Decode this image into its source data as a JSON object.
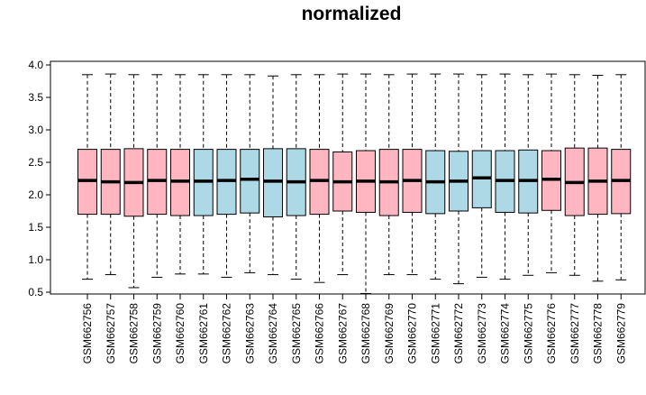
{
  "chart_data": {
    "type": "boxplot",
    "title": "normalized",
    "xlabel": "",
    "ylabel": "",
    "ylim": [
      0.4,
      4.0
    ],
    "yticks": [
      0.5,
      1.0,
      1.5,
      2.0,
      2.5,
      3.0,
      3.5,
      4.0
    ],
    "ytick_labels": [
      "0.5",
      "1.0",
      "1.5",
      "2.0",
      "2.5",
      "3.0",
      "3.5",
      "4.0"
    ],
    "colors": {
      "pink": "#ffb6c1",
      "blue": "#add8e6"
    },
    "categories": [
      "GSM662756",
      "GSM662757",
      "GSM662758",
      "GSM662759",
      "GSM662760",
      "GSM662761",
      "GSM662762",
      "GSM662763",
      "GSM662764",
      "GSM662765",
      "GSM662766",
      "GSM662767",
      "GSM662768",
      "GSM662769",
      "GSM662770",
      "GSM662771",
      "GSM662772",
      "GSM662773",
      "GSM662774",
      "GSM662775",
      "GSM662776",
      "GSM662777",
      "GSM662778",
      "GSM662779"
    ],
    "boxes": [
      {
        "color": "pink",
        "whisker_low": 0.7,
        "q1": 1.7,
        "median": 2.22,
        "q3": 2.7,
        "whisker_high": 3.85
      },
      {
        "color": "pink",
        "whisker_low": 0.77,
        "q1": 1.7,
        "median": 2.2,
        "q3": 2.7,
        "whisker_high": 3.86
      },
      {
        "color": "pink",
        "whisker_low": 0.57,
        "q1": 1.67,
        "median": 2.19,
        "q3": 2.71,
        "whisker_high": 3.85
      },
      {
        "color": "pink",
        "whisker_low": 0.73,
        "q1": 1.7,
        "median": 2.22,
        "q3": 2.7,
        "whisker_high": 3.85
      },
      {
        "color": "pink",
        "whisker_low": 0.78,
        "q1": 1.68,
        "median": 2.21,
        "q3": 2.7,
        "whisker_high": 3.85
      },
      {
        "color": "blue",
        "whisker_low": 0.78,
        "q1": 1.68,
        "median": 2.21,
        "q3": 2.7,
        "whisker_high": 3.85
      },
      {
        "color": "blue",
        "whisker_low": 0.73,
        "q1": 1.7,
        "median": 2.22,
        "q3": 2.7,
        "whisker_high": 3.85
      },
      {
        "color": "blue",
        "whisker_low": 0.8,
        "q1": 1.72,
        "median": 2.24,
        "q3": 2.7,
        "whisker_high": 3.85
      },
      {
        "color": "blue",
        "whisker_low": 0.77,
        "q1": 1.66,
        "median": 2.21,
        "q3": 2.71,
        "whisker_high": 3.83
      },
      {
        "color": "blue",
        "whisker_low": 0.7,
        "q1": 1.68,
        "median": 2.2,
        "q3": 2.71,
        "whisker_high": 3.85
      },
      {
        "color": "pink",
        "whisker_low": 0.65,
        "q1": 1.7,
        "median": 2.22,
        "q3": 2.7,
        "whisker_high": 3.85
      },
      {
        "color": "pink",
        "whisker_low": 0.77,
        "q1": 1.75,
        "median": 2.2,
        "q3": 2.66,
        "whisker_high": 3.86
      },
      {
        "color": "pink",
        "whisker_low": 0.48,
        "q1": 1.73,
        "median": 2.21,
        "q3": 2.68,
        "whisker_high": 3.86
      },
      {
        "color": "pink",
        "whisker_low": 0.77,
        "q1": 1.68,
        "median": 2.2,
        "q3": 2.7,
        "whisker_high": 3.85
      },
      {
        "color": "pink",
        "whisker_low": 0.77,
        "q1": 1.73,
        "median": 2.22,
        "q3": 2.7,
        "whisker_high": 3.86
      },
      {
        "color": "blue",
        "whisker_low": 0.7,
        "q1": 1.71,
        "median": 2.2,
        "q3": 2.68,
        "whisker_high": 3.86
      },
      {
        "color": "blue",
        "whisker_low": 0.63,
        "q1": 1.75,
        "median": 2.21,
        "q3": 2.67,
        "whisker_high": 3.86
      },
      {
        "color": "blue",
        "whisker_low": 0.73,
        "q1": 1.8,
        "median": 2.26,
        "q3": 2.68,
        "whisker_high": 3.85
      },
      {
        "color": "blue",
        "whisker_low": 0.7,
        "q1": 1.73,
        "median": 2.22,
        "q3": 2.68,
        "whisker_high": 3.86
      },
      {
        "color": "blue",
        "whisker_low": 0.76,
        "q1": 1.72,
        "median": 2.22,
        "q3": 2.69,
        "whisker_high": 3.85
      },
      {
        "color": "pink",
        "whisker_low": 0.8,
        "q1": 1.76,
        "median": 2.24,
        "q3": 2.68,
        "whisker_high": 3.86
      },
      {
        "color": "pink",
        "whisker_low": 0.76,
        "q1": 1.68,
        "median": 2.19,
        "q3": 2.72,
        "whisker_high": 3.85
      },
      {
        "color": "pink",
        "whisker_low": 0.67,
        "q1": 1.7,
        "median": 2.21,
        "q3": 2.72,
        "whisker_high": 3.84
      },
      {
        "color": "pink",
        "whisker_low": 0.69,
        "q1": 1.71,
        "median": 2.22,
        "q3": 2.7,
        "whisker_high": 3.85
      }
    ]
  }
}
